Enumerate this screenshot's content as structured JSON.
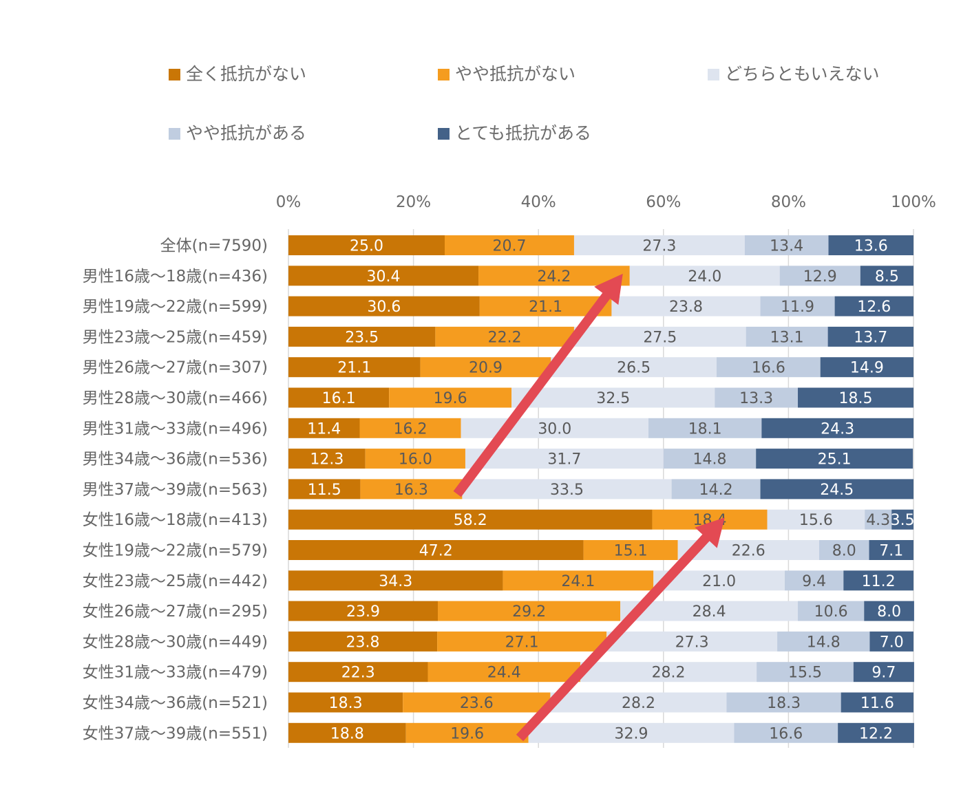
{
  "chart_data": {
    "type": "bar",
    "orientation": "horizontal",
    "stacked": "percent",
    "title": "",
    "xlabel": "",
    "ylabel": "",
    "xlim": [
      0,
      100
    ],
    "x_ticks": [
      "0%",
      "20%",
      "40%",
      "60%",
      "80%",
      "100%"
    ],
    "x_axis_position": "top",
    "grid": true,
    "legend_position": "top",
    "categories": [
      "全体(n=7590)",
      "男性16歳～18歳(n=436)",
      "男性19歳～22歳(n=599)",
      "男性23歳～25歳(n=459)",
      "男性26歳～27歳(n=307)",
      "男性28歳～30歳(n=466)",
      "男性31歳～33歳(n=496)",
      "男性34歳～36歳(n=536)",
      "男性37歳～39歳(n=563)",
      "女性16歳～18歳(n=413)",
      "女性19歳～22歳(n=579)",
      "女性23歳～25歳(n=442)",
      "女性26歳～27歳(n=295)",
      "女性28歳～30歳(n=449)",
      "女性31歳～33歳(n=479)",
      "女性34歳～36歳(n=521)",
      "女性37歳～39歳(n=551)"
    ],
    "series": [
      {
        "name": "全く抵抗がない",
        "color": "#c97606",
        "label_color": "#ffffff",
        "values": [
          25.0,
          30.4,
          30.6,
          23.5,
          21.1,
          16.1,
          11.4,
          12.3,
          11.5,
          58.2,
          47.2,
          34.3,
          23.9,
          23.8,
          22.3,
          18.3,
          18.8
        ]
      },
      {
        "name": "やや抵抗がない",
        "color": "#f59c1f",
        "label_color": "#595959",
        "values": [
          20.7,
          24.2,
          21.1,
          22.2,
          20.9,
          19.6,
          16.2,
          16.0,
          16.3,
          18.4,
          15.1,
          24.1,
          29.2,
          27.1,
          24.4,
          23.6,
          19.6
        ]
      },
      {
        "name": "どちらともいえない",
        "color": "#dee4ef",
        "label_color": "#595959",
        "values": [
          27.3,
          24.0,
          23.8,
          27.5,
          26.5,
          32.5,
          30.0,
          31.7,
          33.5,
          15.6,
          22.6,
          21.0,
          28.4,
          27.3,
          28.2,
          28.2,
          32.9
        ]
      },
      {
        "name": "やや抵抗がある",
        "color": "#c0cde0",
        "label_color": "#595959",
        "values": [
          13.4,
          12.9,
          11.9,
          13.1,
          16.6,
          13.3,
          18.1,
          14.8,
          14.2,
          4.3,
          8.0,
          9.4,
          10.6,
          14.8,
          15.5,
          18.3,
          16.6
        ]
      },
      {
        "name": "とても抵抗がある",
        "color": "#446288",
        "label_color": "#ffffff",
        "values": [
          13.6,
          8.5,
          12.6,
          13.7,
          14.9,
          18.5,
          24.3,
          25.1,
          24.5,
          3.5,
          7.1,
          11.2,
          8.0,
          7.0,
          9.7,
          11.6,
          12.2
        ]
      }
    ],
    "annotations": [
      {
        "type": "arrow",
        "color": "#e34a53",
        "from": {
          "category_index": 8,
          "x": 27.0
        },
        "to": {
          "category_index": 1,
          "x": 53.5
        }
      },
      {
        "type": "arrow",
        "color": "#e34a53",
        "from": {
          "category_index": 16,
          "x": 37.0
        },
        "to": {
          "category_index": 9,
          "x": 69.8
        }
      }
    ]
  }
}
